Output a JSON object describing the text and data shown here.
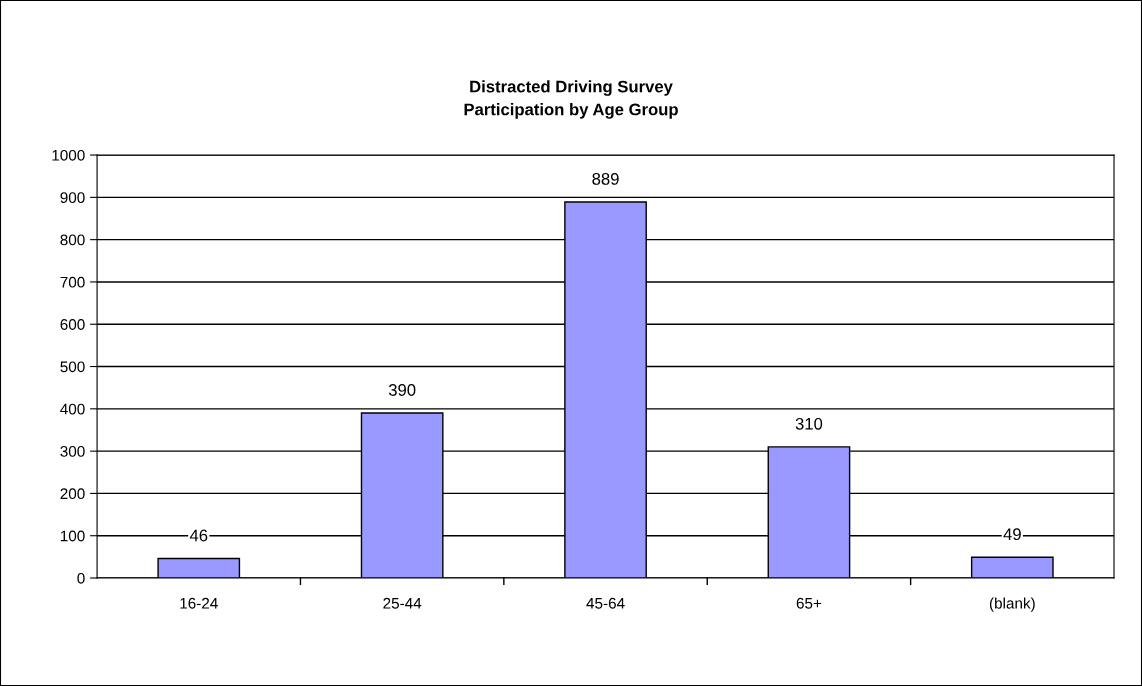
{
  "chart_data": {
    "type": "bar",
    "title": "Distracted Driving Survey\nParticipation by Age Group",
    "categories": [
      "16-24",
      "25-44",
      "45-64",
      "65+",
      "(blank)"
    ],
    "values": [
      46,
      390,
      889,
      310,
      49
    ],
    "color": "#9999ff",
    "ylim": [
      0,
      1000
    ],
    "yticks": [
      0,
      100,
      200,
      300,
      400,
      500,
      600,
      700,
      800,
      900,
      1000
    ],
    "grid": "y",
    "legend": false,
    "data_labels": true
  }
}
